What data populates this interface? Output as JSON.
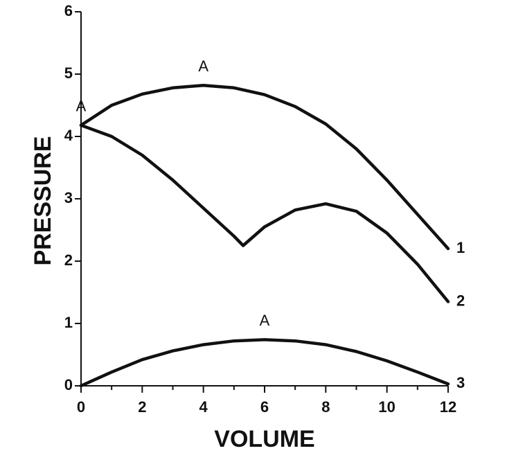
{
  "chart_data": {
    "type": "line",
    "x_label": "VOLUME",
    "y_label": "PRESSURE",
    "xlim": [
      0,
      12
    ],
    "ylim": [
      0,
      6
    ],
    "xticks": [
      0,
      2,
      4,
      6,
      8,
      10,
      12
    ],
    "xminor_ticks": [
      1,
      3,
      5,
      7,
      9,
      11
    ],
    "yticks": [
      0,
      1,
      2,
      3,
      4,
      5,
      6
    ],
    "series": [
      {
        "name": "1",
        "annotation": "A",
        "color": "#111111",
        "x": [
          0,
          1,
          2,
          3,
          4,
          5,
          6,
          7,
          8,
          9,
          10,
          11,
          12
        ],
        "values": [
          4.18,
          4.5,
          4.68,
          4.78,
          4.82,
          4.78,
          4.67,
          4.48,
          4.2,
          3.8,
          3.3,
          2.75,
          2.2
        ]
      },
      {
        "name": "2",
        "annotation": "A",
        "color": "#111111",
        "x": [
          0,
          1,
          2,
          3,
          4,
          5,
          5.3,
          6,
          7,
          8,
          9,
          10,
          11,
          12
        ],
        "values": [
          4.18,
          4.0,
          3.7,
          3.3,
          2.85,
          2.4,
          2.25,
          2.55,
          2.82,
          2.92,
          2.8,
          2.45,
          1.95,
          1.35
        ]
      },
      {
        "name": "3",
        "annotation": "A",
        "color": "#111111",
        "x": [
          0,
          1,
          2,
          3,
          4,
          5,
          6,
          7,
          8,
          9,
          10,
          11,
          12
        ],
        "values": [
          0,
          0.22,
          0.42,
          0.56,
          0.66,
          0.72,
          0.74,
          0.72,
          0.66,
          0.55,
          0.4,
          0.22,
          0.03
        ]
      }
    ]
  }
}
